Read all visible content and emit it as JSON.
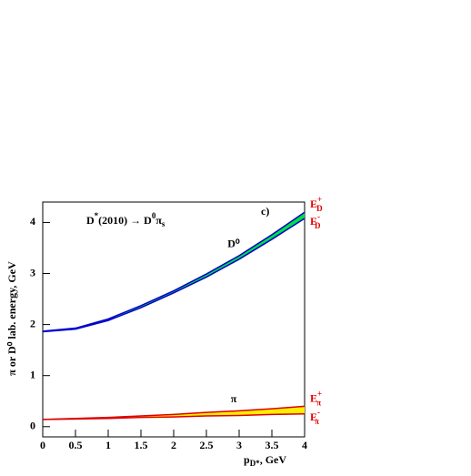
{
  "chart_data": {
    "type": "band",
    "title": {
      "main": "D",
      "sup1": "*",
      "mid": "(2010) → D",
      "sup2": "0",
      "pi": "π",
      "sub": "s"
    },
    "panel_label": "c)",
    "x_label": {
      "main": "p",
      "sub": "D*",
      "rest": ", GeV"
    },
    "y_label": "π or D⁰ lab. energy, GeV",
    "x": [
      0,
      0.5,
      1,
      1.5,
      2,
      2.5,
      3,
      3.5,
      4
    ],
    "bands": [
      {
        "name": "D⁰",
        "fill": "#00e040",
        "edge": "#0000cc",
        "upper": [
          1.87,
          1.93,
          2.11,
          2.37,
          2.66,
          2.99,
          3.35,
          3.76,
          4.2
        ],
        "lower": [
          1.86,
          1.91,
          2.08,
          2.33,
          2.62,
          2.93,
          3.28,
          3.67,
          4.08
        ],
        "upper_label": {
          "main": "E",
          "sup": "+",
          "sub": "D"
        },
        "lower_label": {
          "main": "E",
          "sup": "-",
          "sub": "D"
        }
      },
      {
        "name": "π",
        "fill": "#ffee00",
        "edge": "#dd0000",
        "upper": [
          0.14,
          0.16,
          0.18,
          0.21,
          0.24,
          0.28,
          0.31,
          0.35,
          0.4
        ],
        "lower": [
          0.14,
          0.15,
          0.16,
          0.18,
          0.19,
          0.21,
          0.22,
          0.24,
          0.25
        ],
        "upper_label": {
          "main": "E",
          "sup": "+",
          "sub": "π"
        },
        "lower_label": {
          "main": "E",
          "sup": "-",
          "sub": "π"
        }
      }
    ],
    "xlim": [
      0,
      4
    ],
    "ylim": [
      -0.2,
      4.4
    ],
    "xticks": [
      0,
      0.5,
      1,
      1.5,
      2,
      2.5,
      3,
      3.5,
      4
    ],
    "yticks": [
      0,
      1,
      2,
      3,
      4
    ]
  }
}
